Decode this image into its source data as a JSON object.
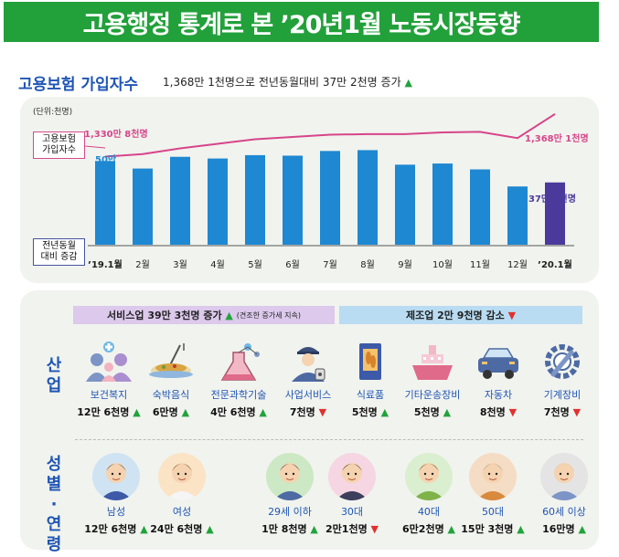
{
  "banner": {
    "title": "고용행정 통계로 본 ’20년1월 노동시장동향"
  },
  "section": {
    "title": "고용보험 가입자수",
    "subtitle": "1,368만 1천명으로 전년동월대비 37만 2천명 증가"
  },
  "chart_labels": {
    "unit": "(단위:천명)",
    "box_top_1": "고용보험",
    "box_top_2": "가입자수",
    "box_bot_1": "전년동월",
    "box_bot_2": "대비 증감",
    "line_start": "1,330만 8천명",
    "line_end": "1,368만 1천명",
    "bar_start": "50만",
    "bar_end": "37만 2천명"
  },
  "chart_data": {
    "type": "bar",
    "categories": [
      "’19.1월",
      "2월",
      "3월",
      "4월",
      "5월",
      "6월",
      "7월",
      "8월",
      "9월",
      "10월",
      "11월",
      "12월",
      "’20.1월"
    ],
    "series": [
      {
        "name": "전년동월 대비 증감",
        "values": [
          500,
          455,
          525,
          515,
          535,
          532,
          560,
          565,
          478,
          485,
          450,
          348,
          372
        ]
      },
      {
        "name": "고용보험 가입자수",
        "values": [
          13308,
          13330,
          13380,
          13420,
          13460,
          13480,
          13500,
          13505,
          13505,
          13520,
          13525,
          13470,
          13681
        ]
      }
    ],
    "ylim": [
      0,
      600
    ],
    "colors": {
      "bar": "#1e88d2",
      "bar_last": "#4b3a9c",
      "line": "#d6458a"
    }
  },
  "categories": {
    "service": "서비스업 39만 3천명 증가",
    "service_note": "(견조한 증가세 지속)",
    "manufacturing": "제조업 2만 9천명 감소"
  },
  "side": {
    "industry": "산업",
    "gender_age": "성별·연령"
  },
  "industry_items": [
    {
      "name": "보건복지",
      "value": "12만 6천명",
      "dir": "up",
      "icon": "health-welfare-icon"
    },
    {
      "name": "숙박음식",
      "value": "6만명",
      "dir": "up",
      "icon": "food-icon"
    },
    {
      "name": "전문과학기술",
      "value": "4만 6천명",
      "dir": "up",
      "icon": "science-flask-icon"
    },
    {
      "name": "사업서비스",
      "value": "7천명",
      "dir": "down",
      "icon": "security-guard-icon"
    },
    {
      "name": "식료품",
      "value": "5천명",
      "dir": "up",
      "icon": "food-package-icon"
    },
    {
      "name": "기타운송장비",
      "value": "5천명",
      "dir": "up",
      "icon": "ship-icon"
    },
    {
      "name": "자동차",
      "value": "8천명",
      "dir": "down",
      "icon": "car-icon"
    },
    {
      "name": "기계장비",
      "value": "7천명",
      "dir": "down",
      "icon": "wrench-gear-icon"
    }
  ],
  "people_items": [
    {
      "name": "남성",
      "value": "12만 6천명",
      "dir": "up",
      "icon": "man-avatar-icon"
    },
    {
      "name": "여성",
      "value": "24만 6천명",
      "dir": "up",
      "icon": "woman-avatar-icon"
    },
    {
      "name": "29세 이하",
      "value": "1만 8천명",
      "dir": "up",
      "icon": "young-man-avatar-icon"
    },
    {
      "name": "30대",
      "value": "2만1천명",
      "dir": "down",
      "icon": "thirties-avatar-icon"
    },
    {
      "name": "40대",
      "value": "6만2천명",
      "dir": "up",
      "icon": "forties-avatar-icon"
    },
    {
      "name": "50대",
      "value": "15만 3천명",
      "dir": "up",
      "icon": "fifties-avatar-icon"
    },
    {
      "name": "60세 이상",
      "value": "16만명",
      "dir": "up",
      "icon": "senior-avatar-icon"
    }
  ]
}
